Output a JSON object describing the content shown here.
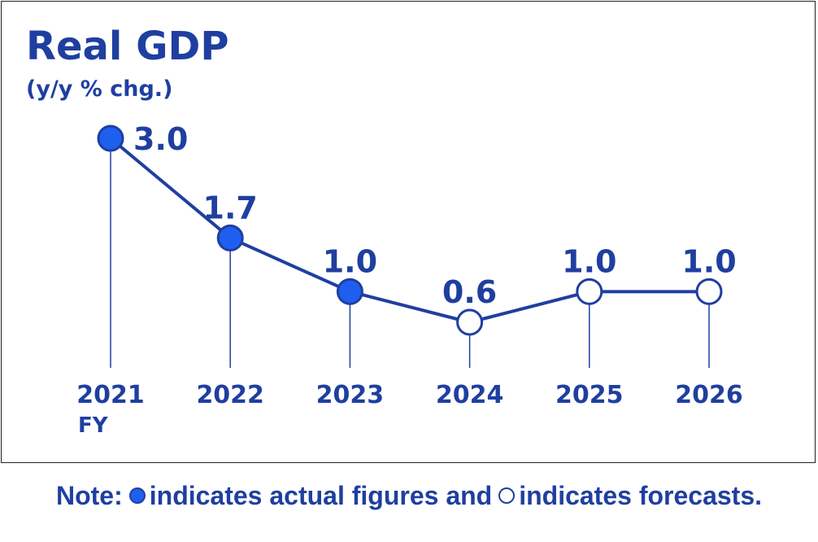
{
  "chart_data": {
    "type": "line",
    "title": "Real GDP",
    "subtitle": "(y/y % chg.)",
    "x_unit_label": "FY",
    "categories": [
      "2021",
      "2022",
      "2023",
      "2024",
      "2025",
      "2026"
    ],
    "values": [
      3.0,
      1.7,
      1.0,
      0.6,
      1.0,
      1.0
    ],
    "value_labels": [
      "3.0",
      "1.7",
      "1.0",
      "0.6",
      "1.0",
      "1.0"
    ],
    "point_status": [
      "actual",
      "actual",
      "actual",
      "forecast",
      "forecast",
      "forecast"
    ],
    "ylim": [
      0.6,
      3.0
    ],
    "grid": false,
    "colors": {
      "line": "#1f3fa0",
      "actual_fill": "#1e5ff0",
      "forecast_fill": "#ffffff",
      "text": "#1f3fa0"
    }
  },
  "note": {
    "prefix": "Note:",
    "actual_text": "indicates actual figures and",
    "forecast_text": "indicates forecasts."
  }
}
